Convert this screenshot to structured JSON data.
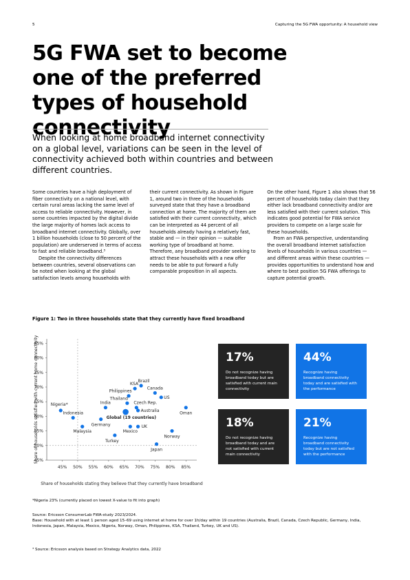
{
  "header": {
    "page_number": "5",
    "running_title": "Capturing the 5G FWA opportunity: A household view"
  },
  "title": "5G FWA set to become one of the preferred types of household connectivity",
  "lead": "When looking at home broadband internet connectivity on a global level, variations can be seen in the level of connectivity achieved both within countries and between different countries.",
  "body": [
    "Some countries have a high deployment of fiber connectivity on a national level, with certain rural areas lacking the same level of access to reliable connectivity. However, in some countries impacted by the digital divide the large majority of homes lack access to broadband internet connectivity. Globally, over 1 billion households (close to 50 percent of the population) are underserved in terms of access to fast and reliable broadband.³",
    "Despite the connectivity differences between countries, several observations can be noted when looking at the global satisfaction levels among households with their current connectivity. As shown in Figure 1, around two in three of the households surveyed state that they have a broadband connection at home. The majority of them are satisfied with their current connectivity, which can be interpreted as 44 percent of all households already having a relatively fast, stable and — in their opinion — suitable working type of broadband at home. Therefore, any broadband provider seeking to attract these households with a new offer needs to be able to put forward a fully comparable proposition in all aspects.",
    "On the other hand, Figure 1 also shows that 56 percent of households today claim that they either lack broadband connectivity and/or are less satisfied with their current solution. This indicates good potential for FWA service providers to compete on a large scale for these households.",
    "From an FWA perspective, understanding the overall broadband internet satisfaction levels of households in various countries — and different areas within these countries — provides opportunities to understand how and where to best position 5G FWA offerings to capture potential growth."
  ],
  "figure_caption": "Figure 1: Two in three households state that they currently have fixed broadband",
  "chart_data": {
    "type": "scatter",
    "x_label": "Share of households stating they believe that they currently have broadband",
    "y_label": "Share of households satisfied with current home connectivity",
    "point_labels": [
      "Nigeria*",
      "Indonesia",
      "Malaysia",
      "Germany",
      "India",
      "Turkey",
      "Thailand",
      "Philippines",
      "KSA",
      "Brazil",
      "Czech Rep.",
      "Australia",
      "Mexico",
      "UK",
      "Canada",
      "US",
      "Japan",
      "Norway",
      "Oman",
      "Global (19 countries)"
    ],
    "x": [
      44.5,
      48.5,
      51.5,
      57.5,
      59,
      62,
      66,
      66.5,
      68.5,
      70.5,
      69,
      69.5,
      67,
      69.5,
      75,
      77,
      75.5,
      80.5,
      85,
      65.5
    ],
    "values": [
      62,
      59.5,
      56.5,
      59,
      63,
      53.5,
      64.5,
      67,
      69.5,
      70.5,
      63,
      62,
      56.5,
      56.5,
      68,
      66.5,
      50.5,
      55,
      63,
      61.5
    ],
    "color": "#1174e6",
    "xlim": [
      40,
      88.5
    ],
    "ylim": [
      45,
      86.5
    ],
    "xticks": [
      {
        "value": 45,
        "label": "45%"
      },
      {
        "value": 50,
        "label": "50%"
      },
      {
        "value": 55,
        "label": "55%"
      },
      {
        "value": 60,
        "label": "60%"
      },
      {
        "value": 65,
        "label": "65%"
      },
      {
        "value": 70,
        "label": "70%"
      },
      {
        "value": 75,
        "label": "75%"
      },
      {
        "value": 80,
        "label": "80%"
      },
      {
        "value": 85,
        "label": "85%"
      }
    ],
    "yticks": [
      {
        "value": 45,
        "label": "45%"
      },
      {
        "value": 50,
        "label": "50%"
      },
      {
        "value": 55,
        "label": "55%"
      },
      {
        "value": 60,
        "label": "60%"
      },
      {
        "value": 65,
        "label": "65%"
      },
      {
        "value": 70,
        "label": "70%"
      },
      {
        "value": 75,
        "label": "75%"
      },
      {
        "value": 80,
        "label": "80%"
      },
      {
        "value": 85,
        "label": "85%"
      }
    ],
    "reference_lines": {
      "x": 50,
      "y": 50
    }
  },
  "quadrants": [
    {
      "value": "17%",
      "text": "Do not recognize having broadband today but are satisfied with current main connectivity"
    },
    {
      "value": "44%",
      "text": "Recognize having broadband connectivity today and are satisfied with the performance"
    },
    {
      "value": "18%",
      "text": "Do not recognize having broadband today and are not satisfied with current main connectivity"
    },
    {
      "value": "21%",
      "text": "Recognize having broadband connectivity today but are not satisfied with the performance"
    }
  ],
  "notes": {
    "nigeria": "*Nigeria 23% (currently placed on lowest X-value to fit into graph)",
    "source": "Source: Ericsson ConsumerLab FWA-study 2023/2024.",
    "base": "Base: Household with at least 1 person aged 15–69 using internet at home for over 1h/day within 19 countries (Australia, Brazil, Canada, Czech Republic, Germany, India, Indonesia, Japan, Malaysia, Mexico, Nigeria, Norway, Oman, Philippines, KSA, Thailand, Turkey, UK and US).",
    "footnote": "³ Source: Ericsson analysis based on Strategy Analytics data, 2022"
  }
}
